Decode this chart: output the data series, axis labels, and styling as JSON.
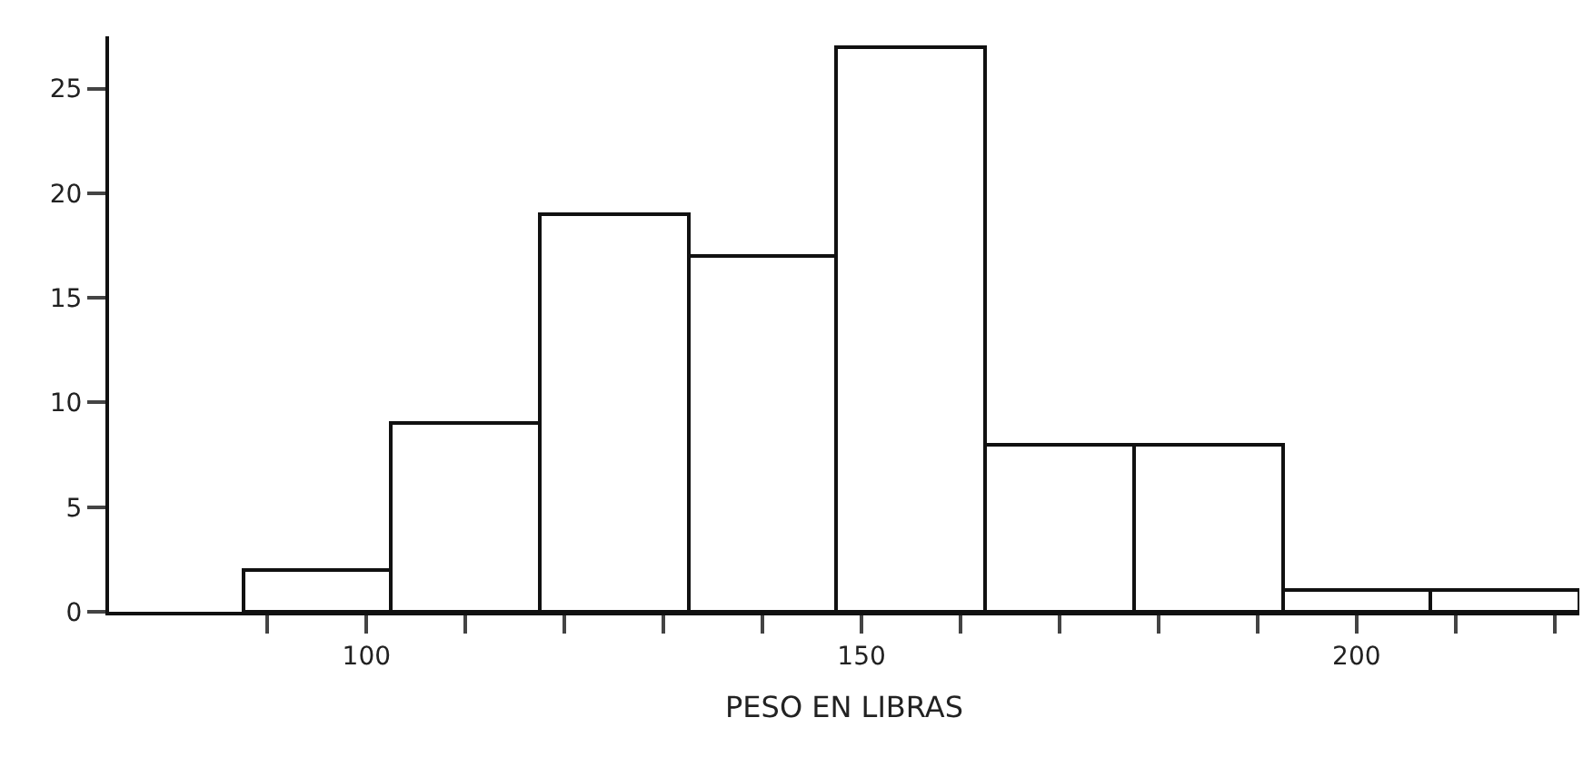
{
  "chart_data": {
    "type": "histogram",
    "xlabel": "PESO EN LIBRAS",
    "bins": [
      87.5,
      102.5,
      117.5,
      132.5,
      147.5,
      162.5,
      177.5,
      192.5,
      207.5,
      222.5
    ],
    "values": [
      2,
      9,
      19,
      17,
      27,
      8,
      8,
      1,
      1
    ],
    "color": "#ffffff",
    "xlim": [
      74,
      222.5
    ],
    "xticks": [
      {
        "value": 90,
        "label": null
      },
      100,
      {
        "value": 110,
        "label": null
      },
      {
        "value": 120,
        "label": null
      },
      {
        "value": 130,
        "label": null
      },
      {
        "value": 140,
        "label": null
      },
      150,
      {
        "value": 160,
        "label": null
      },
      {
        "value": 170,
        "label": null
      },
      {
        "value": 180,
        "label": null
      },
      {
        "value": 190,
        "label": null
      },
      200,
      {
        "value": 210,
        "label": null
      },
      {
        "value": 220,
        "label": null
      }
    ],
    "ylim": [
      0,
      27.5
    ],
    "yticks": [
      0,
      5,
      10,
      15,
      20,
      25
    ]
  }
}
